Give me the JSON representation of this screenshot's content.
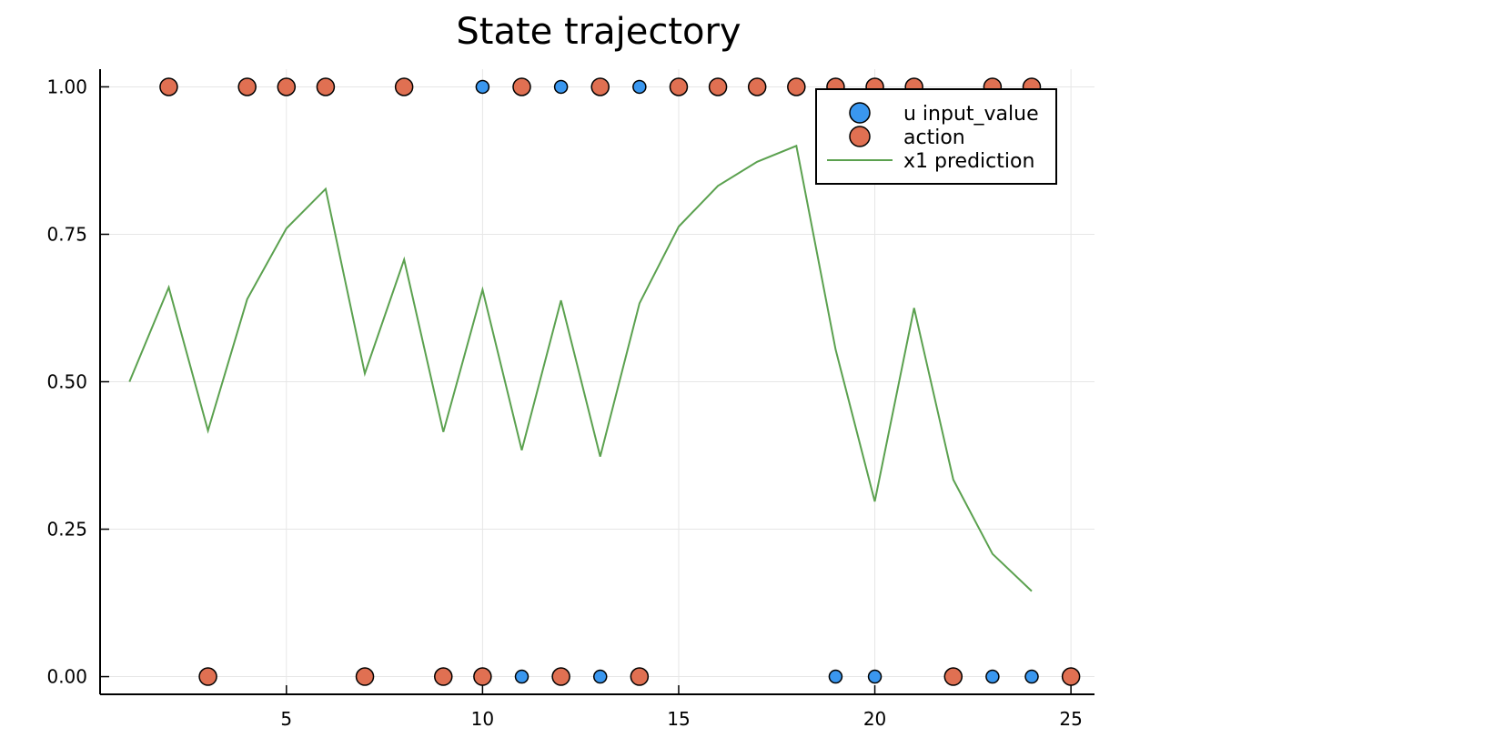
{
  "chart_data": {
    "type": "scatter",
    "title": "State trajectory",
    "xlabel": "",
    "ylabel": "",
    "xlim": [
      0.25,
      25.6
    ],
    "ylim": [
      -0.03,
      1.03
    ],
    "x_ticks": [
      5,
      10,
      15,
      20,
      25
    ],
    "x_tick_labels": [
      "5",
      "10",
      "15",
      "20",
      "25"
    ],
    "y_ticks": [
      0,
      0.25,
      0.5,
      0.75,
      1.0
    ],
    "y_tick_labels": [
      "0.00",
      "0.25",
      "0.50",
      "0.75",
      "1.00"
    ],
    "grid": true,
    "legend_position": "top-right",
    "series": [
      {
        "name": "u input_value",
        "kind": "scatter",
        "color": "#3a97ef",
        "x": [
          10,
          11,
          12,
          13,
          14,
          19,
          20,
          23,
          24
        ],
        "y": [
          1,
          0,
          1,
          0,
          1,
          0,
          0,
          0,
          0
        ]
      },
      {
        "name": "action",
        "kind": "scatter",
        "color": "#e07052",
        "x": [
          2,
          3,
          4,
          5,
          6,
          7,
          8,
          9,
          10,
          11,
          12,
          13,
          14,
          15,
          16,
          17,
          18,
          19,
          20,
          21,
          22,
          23,
          24,
          25
        ],
        "y": [
          1,
          0,
          1,
          1,
          1,
          0,
          1,
          0,
          0,
          1,
          0,
          1,
          0,
          1,
          1,
          1,
          1,
          1,
          1,
          1,
          0,
          1,
          1,
          0
        ]
      },
      {
        "name": "x1 prediction",
        "kind": "line",
        "color": "#5ba14f",
        "x": [
          1,
          2,
          3,
          4,
          5,
          6,
          7,
          8,
          9,
          10,
          11,
          12,
          13,
          14,
          15,
          16,
          17,
          18,
          19,
          20,
          21,
          22,
          23,
          24
        ],
        "y": [
          0.5,
          0.66,
          0.417,
          0.64,
          0.76,
          0.827,
          0.514,
          0.707,
          0.415,
          0.656,
          0.384,
          0.638,
          0.373,
          0.633,
          0.763,
          0.832,
          0.873,
          0.9,
          0.555,
          0.297,
          0.625,
          0.334,
          0.208,
          0.145
        ]
      }
    ]
  }
}
